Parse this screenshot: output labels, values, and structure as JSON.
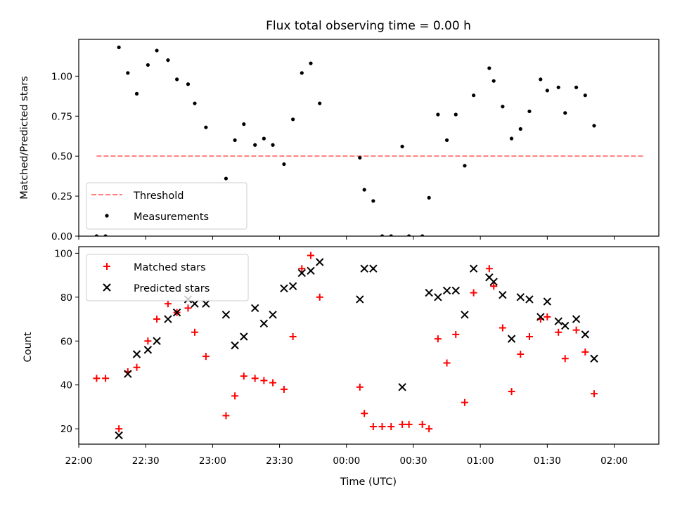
{
  "chart_data": [
    {
      "type": "scatter",
      "title": "Flux total observing time = 0.00 h",
      "xlabel": "",
      "ylabel": "Matched/Predicted stars",
      "xlim": [
        "22:00",
        "02:20"
      ],
      "ylim": [
        0,
        1.23
      ],
      "yticks": [
        "0.00",
        "0.25",
        "0.50",
        "0.75",
        "1.00"
      ],
      "legend_position": "lower-left",
      "series": [
        {
          "name": "Threshold",
          "style": "dashed-line",
          "color": "#ff7f7f",
          "points": [
            [
              "22:08",
              0.5
            ],
            [
              "02:13",
              0.5
            ]
          ]
        },
        {
          "name": "Measurements",
          "style": "dot",
          "color": "#000000",
          "points": [
            [
              "22:08",
              0.0
            ],
            [
              "22:12",
              0.0
            ],
            [
              "22:18",
              1.18
            ],
            [
              "22:22",
              1.02
            ],
            [
              "22:26",
              0.89
            ],
            [
              "22:31",
              1.07
            ],
            [
              "22:35",
              1.16
            ],
            [
              "22:40",
              1.1
            ],
            [
              "22:44",
              0.98
            ],
            [
              "22:49",
              0.95
            ],
            [
              "22:52",
              0.83
            ],
            [
              "22:57",
              0.68
            ],
            [
              "23:06",
              0.36
            ],
            [
              "23:10",
              0.6
            ],
            [
              "23:14",
              0.7
            ],
            [
              "23:19",
              0.57
            ],
            [
              "23:23",
              0.61
            ],
            [
              "23:27",
              0.57
            ],
            [
              "23:32",
              0.45
            ],
            [
              "23:36",
              0.73
            ],
            [
              "23:40",
              1.02
            ],
            [
              "23:44",
              1.08
            ],
            [
              "23:48",
              0.83
            ],
            [
              "00:06",
              0.49
            ],
            [
              "00:08",
              0.29
            ],
            [
              "00:12",
              0.22
            ],
            [
              "00:16",
              0.0
            ],
            [
              "00:20",
              0.0
            ],
            [
              "00:25",
              0.56
            ],
            [
              "00:28",
              0.0
            ],
            [
              "00:34",
              0.0
            ],
            [
              "00:37",
              0.24
            ],
            [
              "00:41",
              0.76
            ],
            [
              "00:45",
              0.6
            ],
            [
              "00:49",
              0.76
            ],
            [
              "00:53",
              0.44
            ],
            [
              "00:57",
              0.88
            ],
            [
              "01:04",
              1.05
            ],
            [
              "01:06",
              0.97
            ],
            [
              "01:10",
              0.81
            ],
            [
              "01:14",
              0.61
            ],
            [
              "01:18",
              0.67
            ],
            [
              "01:22",
              0.78
            ],
            [
              "01:27",
              0.98
            ],
            [
              "01:30",
              0.91
            ],
            [
              "01:35",
              0.93
            ],
            [
              "01:38",
              0.77
            ],
            [
              "01:43",
              0.93
            ],
            [
              "01:47",
              0.88
            ],
            [
              "01:51",
              0.69
            ]
          ]
        }
      ]
    },
    {
      "type": "scatter",
      "title": "",
      "xlabel": "Time (UTC)",
      "ylabel": "Count",
      "xlim": [
        "22:00",
        "02:20"
      ],
      "ylim": [
        13,
        103
      ],
      "xticks": [
        "22:00",
        "22:30",
        "23:00",
        "23:30",
        "00:00",
        "00:30",
        "01:00",
        "01:30",
        "02:00"
      ],
      "yticks": [
        "20",
        "40",
        "60",
        "80",
        "100"
      ],
      "legend_position": "upper-left",
      "series": [
        {
          "name": "Matched stars",
          "marker": "plus",
          "color": "#ff0000",
          "points": [
            [
              "22:08",
              43
            ],
            [
              "22:12",
              43
            ],
            [
              "22:18",
              20
            ],
            [
              "22:22",
              46
            ],
            [
              "22:26",
              48
            ],
            [
              "22:31",
              60
            ],
            [
              "22:35",
              70
            ],
            [
              "22:40",
              77
            ],
            [
              "22:44",
              73
            ],
            [
              "22:49",
              75
            ],
            [
              "22:52",
              64
            ],
            [
              "22:57",
              53
            ],
            [
              "23:06",
              26
            ],
            [
              "23:10",
              35
            ],
            [
              "23:14",
              44
            ],
            [
              "23:19",
              43
            ],
            [
              "23:23",
              42
            ],
            [
              "23:27",
              41
            ],
            [
              "23:32",
              38
            ],
            [
              "23:36",
              62
            ],
            [
              "23:40",
              93
            ],
            [
              "23:44",
              99
            ],
            [
              "23:48",
              80
            ],
            [
              "00:06",
              39
            ],
            [
              "00:08",
              27
            ],
            [
              "00:12",
              21
            ],
            [
              "00:16",
              21
            ],
            [
              "00:20",
              21
            ],
            [
              "00:25",
              22
            ],
            [
              "00:28",
              22
            ],
            [
              "00:34",
              22
            ],
            [
              "00:37",
              20
            ],
            [
              "00:41",
              61
            ],
            [
              "00:45",
              50
            ],
            [
              "00:49",
              63
            ],
            [
              "00:53",
              32
            ],
            [
              "00:57",
              82
            ],
            [
              "01:04",
              93
            ],
            [
              "01:06",
              85
            ],
            [
              "01:10",
              66
            ],
            [
              "01:14",
              37
            ],
            [
              "01:18",
              54
            ],
            [
              "01:22",
              62
            ],
            [
              "01:27",
              70
            ],
            [
              "01:30",
              71
            ],
            [
              "01:35",
              64
            ],
            [
              "01:38",
              52
            ],
            [
              "01:43",
              65
            ],
            [
              "01:47",
              55
            ],
            [
              "01:51",
              36
            ]
          ]
        },
        {
          "name": "Predicted stars",
          "marker": "x",
          "color": "#000000",
          "points": [
            [
              "22:18",
              17
            ],
            [
              "22:22",
              45
            ],
            [
              "22:26",
              54
            ],
            [
              "22:31",
              56
            ],
            [
              "22:35",
              60
            ],
            [
              "22:40",
              70
            ],
            [
              "22:44",
              73
            ],
            [
              "22:49",
              79
            ],
            [
              "22:52",
              77
            ],
            [
              "22:57",
              77
            ],
            [
              "23:06",
              72
            ],
            [
              "23:10",
              58
            ],
            [
              "23:14",
              62
            ],
            [
              "23:19",
              75
            ],
            [
              "23:23",
              68
            ],
            [
              "23:27",
              72
            ],
            [
              "23:32",
              84
            ],
            [
              "23:36",
              85
            ],
            [
              "23:40",
              91
            ],
            [
              "23:44",
              92
            ],
            [
              "23:48",
              96
            ],
            [
              "00:06",
              79
            ],
            [
              "00:08",
              93
            ],
            [
              "00:12",
              93
            ],
            [
              "00:25",
              39
            ],
            [
              "00:37",
              82
            ],
            [
              "00:41",
              80
            ],
            [
              "00:45",
              83
            ],
            [
              "00:49",
              83
            ],
            [
              "00:53",
              72
            ],
            [
              "00:57",
              93
            ],
            [
              "01:04",
              89
            ],
            [
              "01:06",
              87
            ],
            [
              "01:10",
              81
            ],
            [
              "01:14",
              61
            ],
            [
              "01:18",
              80
            ],
            [
              "01:22",
              79
            ],
            [
              "01:27",
              71
            ],
            [
              "01:30",
              78
            ],
            [
              "01:35",
              69
            ],
            [
              "01:38",
              67
            ],
            [
              "01:43",
              70
            ],
            [
              "01:47",
              63
            ],
            [
              "01:51",
              52
            ]
          ]
        }
      ]
    }
  ]
}
